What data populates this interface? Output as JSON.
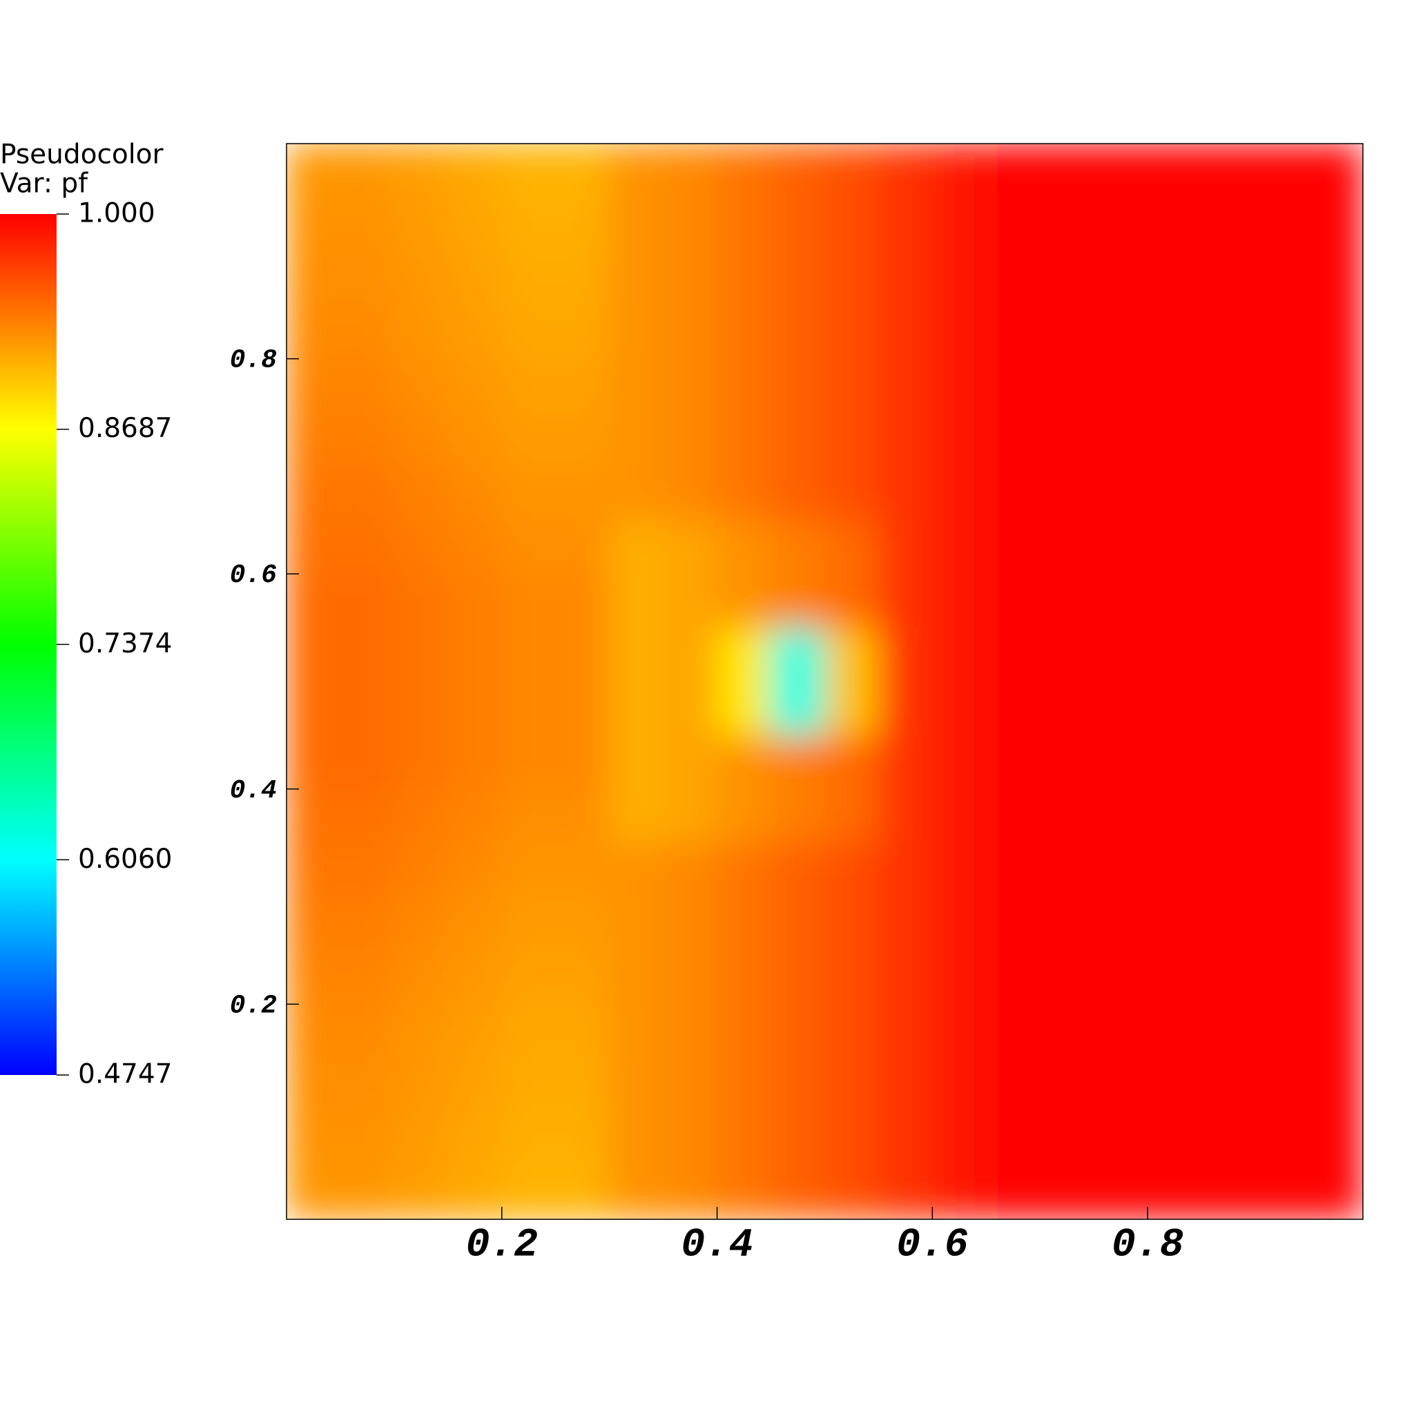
{
  "chart_data": {
    "type": "pseudocolor",
    "legend_title": "Pseudocolor",
    "legend_subtitle": "Var: pf",
    "clim": [
      0.4747,
      1
    ],
    "cticks": [
      {
        "value": 1,
        "label": "1.000"
      },
      0.8687,
      0.7374,
      {
        "value": 0.606,
        "label": "0.6060"
      },
      0.4747
    ],
    "colormap": [
      "#0000ff",
      "#00ffff",
      "#00ff00",
      "#ffff00",
      "#ff0000"
    ],
    "xlim": [
      0,
      1
    ],
    "ylim": [
      0,
      1
    ],
    "xticks": [
      0.2,
      0.4,
      0.6,
      0.8
    ],
    "yticks": [
      0.2,
      0.4,
      0.6,
      0.8
    ],
    "x": [
      0.025,
      0.075,
      0.125,
      0.175,
      0.225,
      0.275,
      0.325,
      0.375,
      0.425,
      0.475,
      0.525,
      0.575,
      0.625,
      0.675,
      0.725,
      0.775,
      0.825,
      0.875,
      0.925,
      0.975
    ],
    "y": [
      0.025,
      0.075,
      0.125,
      0.175,
      0.225,
      0.275,
      0.325,
      0.375,
      0.425,
      0.475,
      0.525,
      0.575,
      0.625,
      0.675,
      0.725,
      0.775,
      0.825,
      0.875,
      0.925,
      0.975
    ],
    "values": [
      [
        0.923,
        0.923,
        0.918,
        0.913,
        0.908,
        0.908,
        0.925,
        0.93,
        0.94,
        0.95,
        0.96,
        0.975,
        0.99,
        1,
        1,
        1,
        1,
        1,
        1,
        1
      ],
      [
        0.925,
        0.925,
        0.92,
        0.915,
        0.91,
        0.91,
        0.925,
        0.93,
        0.94,
        0.95,
        0.96,
        0.975,
        0.99,
        1,
        1,
        1,
        1,
        1,
        1,
        1
      ],
      [
        0.927,
        0.927,
        0.922,
        0.917,
        0.912,
        0.912,
        0.925,
        0.93,
        0.94,
        0.95,
        0.96,
        0.975,
        0.99,
        1,
        1,
        1,
        1,
        1,
        1,
        1
      ],
      [
        0.929,
        0.929,
        0.924,
        0.919,
        0.914,
        0.914,
        0.925,
        0.93,
        0.94,
        0.95,
        0.96,
        0.975,
        0.99,
        1,
        1,
        1,
        1,
        1,
        1,
        1
      ],
      [
        0.932,
        0.932,
        0.927,
        0.922,
        0.917,
        0.917,
        0.925,
        0.93,
        0.94,
        0.95,
        0.96,
        0.975,
        0.99,
        1,
        1,
        1,
        1,
        1,
        1,
        1
      ],
      [
        0.935,
        0.935,
        0.93,
        0.925,
        0.92,
        0.92,
        0.925,
        0.93,
        0.94,
        0.95,
        0.96,
        0.975,
        0.99,
        1,
        1,
        1,
        1,
        1,
        1,
        1
      ],
      [
        0.939,
        0.939,
        0.934,
        0.929,
        0.924,
        0.924,
        0.925,
        0.93,
        0.94,
        0.95,
        0.96,
        0.975,
        0.99,
        1,
        1,
        1,
        1,
        1,
        1,
        1
      ],
      [
        0.942,
        0.942,
        0.937,
        0.932,
        0.927,
        0.927,
        0.91,
        0.915,
        0.925,
        0.935,
        0.945,
        0.975,
        0.99,
        1,
        1,
        1,
        1,
        1,
        1,
        1
      ],
      [
        0.945,
        0.945,
        0.94,
        0.935,
        0.93,
        0.93,
        0.91,
        0.915,
        0.925,
        0.935,
        0.945,
        0.975,
        0.99,
        1,
        1,
        1,
        1,
        1,
        1,
        1
      ],
      [
        0.945,
        0.945,
        0.94,
        0.935,
        0.93,
        0.93,
        0.91,
        0.915,
        0.88,
        0.62,
        0.9,
        0.975,
        0.99,
        1,
        1,
        1,
        1,
        1,
        1,
        1
      ],
      [
        0.945,
        0.945,
        0.94,
        0.935,
        0.93,
        0.93,
        0.91,
        0.915,
        0.88,
        0.62,
        0.9,
        0.975,
        0.99,
        1,
        1,
        1,
        1,
        1,
        1,
        1
      ],
      [
        0.945,
        0.945,
        0.94,
        0.935,
        0.93,
        0.93,
        0.91,
        0.915,
        0.925,
        0.935,
        0.945,
        0.975,
        0.99,
        1,
        1,
        1,
        1,
        1,
        1,
        1
      ],
      [
        0.942,
        0.942,
        0.937,
        0.932,
        0.927,
        0.927,
        0.91,
        0.915,
        0.925,
        0.935,
        0.945,
        0.975,
        0.99,
        1,
        1,
        1,
        1,
        1,
        1,
        1
      ],
      [
        0.939,
        0.939,
        0.934,
        0.929,
        0.924,
        0.924,
        0.925,
        0.93,
        0.94,
        0.95,
        0.96,
        0.975,
        0.99,
        1,
        1,
        1,
        1,
        1,
        1,
        1
      ],
      [
        0.935,
        0.935,
        0.93,
        0.925,
        0.92,
        0.92,
        0.925,
        0.93,
        0.94,
        0.95,
        0.96,
        0.975,
        0.99,
        1,
        1,
        1,
        1,
        1,
        1,
        1
      ],
      [
        0.932,
        0.932,
        0.927,
        0.922,
        0.917,
        0.917,
        0.925,
        0.93,
        0.94,
        0.95,
        0.96,
        0.975,
        0.99,
        1,
        1,
        1,
        1,
        1,
        1,
        1
      ],
      [
        0.929,
        0.929,
        0.924,
        0.919,
        0.914,
        0.914,
        0.925,
        0.93,
        0.94,
        0.95,
        0.96,
        0.975,
        0.99,
        1,
        1,
        1,
        1,
        1,
        1,
        1
      ],
      [
        0.927,
        0.927,
        0.922,
        0.917,
        0.912,
        0.912,
        0.925,
        0.93,
        0.94,
        0.95,
        0.96,
        0.975,
        0.99,
        1,
        1,
        1,
        1,
        1,
        1,
        1
      ],
      [
        0.925,
        0.925,
        0.92,
        0.915,
        0.91,
        0.91,
        0.925,
        0.93,
        0.94,
        0.95,
        0.96,
        0.975,
        0.99,
        1,
        1,
        1,
        1,
        1,
        1,
        1
      ],
      [
        0.923,
        0.923,
        0.918,
        0.913,
        0.908,
        0.908,
        0.925,
        0.93,
        0.94,
        0.95,
        0.96,
        0.975,
        0.99,
        1,
        1,
        1,
        1,
        1,
        1,
        1
      ]
    ]
  }
}
